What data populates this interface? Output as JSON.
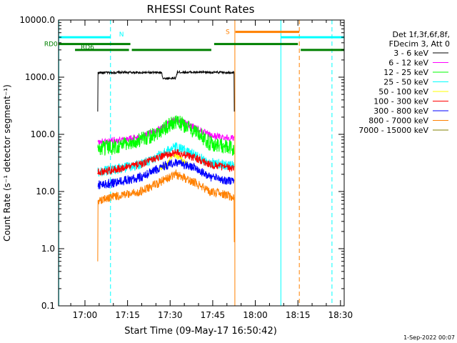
{
  "chart_data": {
    "type": "line",
    "title": "RHESSI Count Rates",
    "xlabel": "Start Time (09-May-17 16:50:42)",
    "ylabel": "Count Rate (s⁻¹ detector segment⁻¹)",
    "yscale": "log",
    "ylim": [
      0.1,
      10000
    ],
    "xlim_min": [
      -9.3,
      91.3
    ],
    "xticks": [
      {
        "label": "17:00",
        "min": 0
      },
      {
        "label": "17:15",
        "min": 15
      },
      {
        "label": "17:30",
        "min": 30
      },
      {
        "label": "17:45",
        "min": 45
      },
      {
        "label": "18:00",
        "min": 60
      },
      {
        "label": "18:15",
        "min": 75
      },
      {
        "label": "18:30",
        "min": 90
      }
    ],
    "yticks": [
      {
        "label": "0.1",
        "v": 0.1
      },
      {
        "label": "1.0",
        "v": 1
      },
      {
        "label": "10.0",
        "v": 10
      },
      {
        "label": "100.0",
        "v": 100
      },
      {
        "label": "1000.0",
        "v": 1000
      },
      {
        "label": "10000.0",
        "v": 10000
      }
    ],
    "legend_header": [
      "Det 1f,3f,6f,8f,",
      "FDecim 3, Att 0"
    ],
    "legend_position": "right",
    "series": [
      {
        "name": "3 - 6 keV",
        "color": "#000000",
        "points": [
          [
            4.5,
            250
          ],
          [
            4.6,
            1200
          ],
          [
            14,
            1210
          ],
          [
            27,
            1200
          ],
          [
            27.5,
            950
          ],
          [
            32,
            960
          ],
          [
            32.5,
            1220
          ],
          [
            52.5,
            1210
          ],
          [
            52.6,
            250
          ]
        ]
      },
      {
        "name": "6 - 12 keV",
        "color": "#ff00ff",
        "points": [
          [
            4.5,
            72
          ],
          [
            10,
            78
          ],
          [
            20,
            90
          ],
          [
            27,
            130
          ],
          [
            32,
            180
          ],
          [
            38,
            140
          ],
          [
            44,
            95
          ],
          [
            52.5,
            85
          ]
        ]
      },
      {
        "name": "12 - 25 keV",
        "color": "#00ff00",
        "points": [
          [
            4.5,
            55
          ],
          [
            10,
            60
          ],
          [
            20,
            80
          ],
          [
            27,
            120
          ],
          [
            32,
            170
          ],
          [
            38,
            120
          ],
          [
            44,
            70
          ],
          [
            52.5,
            55
          ]
        ]
      },
      {
        "name": "25 - 50 keV",
        "color": "#00ffff",
        "points": [
          [
            4.5,
            22
          ],
          [
            10,
            24
          ],
          [
            20,
            30
          ],
          [
            27,
            45
          ],
          [
            32,
            60
          ],
          [
            38,
            45
          ],
          [
            44,
            32
          ],
          [
            52.5,
            28
          ]
        ]
      },
      {
        "name": "50 - 100 keV",
        "color": "#ffff00",
        "points": [
          [
            26,
            25
          ],
          [
            29,
            30
          ],
          [
            31,
            45
          ],
          [
            33,
            40
          ],
          [
            36,
            30
          ]
        ]
      },
      {
        "name": "100 - 300 keV",
        "color": "#ff0000",
        "points": [
          [
            4.5,
            22
          ],
          [
            10,
            24
          ],
          [
            20,
            30
          ],
          [
            27,
            42
          ],
          [
            32,
            48
          ],
          [
            38,
            40
          ],
          [
            44,
            30
          ],
          [
            52.5,
            25
          ]
        ]
      },
      {
        "name": "300 - 800 keV",
        "color": "#0000ff",
        "points": [
          [
            4.5,
            13
          ],
          [
            10,
            14
          ],
          [
            20,
            18
          ],
          [
            27,
            27
          ],
          [
            32,
            33
          ],
          [
            38,
            27
          ],
          [
            44,
            18
          ],
          [
            52.5,
            15
          ]
        ]
      },
      {
        "name": "800 - 7000 keV",
        "color": "#ff8000",
        "points": [
          [
            4.5,
            0.6
          ],
          [
            4.6,
            7
          ],
          [
            10,
            8
          ],
          [
            20,
            10
          ],
          [
            27,
            15
          ],
          [
            32,
            20
          ],
          [
            38,
            15
          ],
          [
            44,
            10
          ],
          [
            52.5,
            8
          ],
          [
            52.6,
            1.3
          ]
        ]
      },
      {
        "name": "7000 - 15000 keV",
        "color": "#808000",
        "points": []
      }
    ],
    "flags": [
      {
        "label": "N",
        "color": "#00ffff",
        "level": 5000,
        "segments": [
          [
            -9.3,
            9
          ],
          [
            69,
            91.3
          ]
        ]
      },
      {
        "label": "S",
        "color": "#ff8000",
        "level": 6200,
        "segments": [
          [
            53,
            75.5
          ]
        ]
      },
      {
        "label": "RD0",
        "color": "#008000",
        "level": 3800,
        "segments": [
          [
            -9.3,
            16
          ],
          [
            45.5,
            75
          ]
        ]
      },
      {
        "label": "RD6",
        "color": "#008000",
        "level": 3000,
        "segments": [
          [
            -3.5,
            15.5
          ],
          [
            16.5,
            44.5
          ],
          [
            76,
            91.3
          ]
        ]
      }
    ],
    "vlines": [
      {
        "min": -9.2,
        "color": "#00ffff",
        "dash": false
      },
      {
        "min": 9,
        "color": "#00ffff",
        "dash": true
      },
      {
        "min": 52.8,
        "color": "#ff8000",
        "dash": false
      },
      {
        "min": 69,
        "color": "#00ffff",
        "dash": false
      },
      {
        "min": 75.5,
        "color": "#ff8000",
        "dash": true
      },
      {
        "min": 87,
        "color": "#00ffff",
        "dash": true
      }
    ]
  },
  "footer": {
    "date": "1-Sep-2022 00:07"
  }
}
